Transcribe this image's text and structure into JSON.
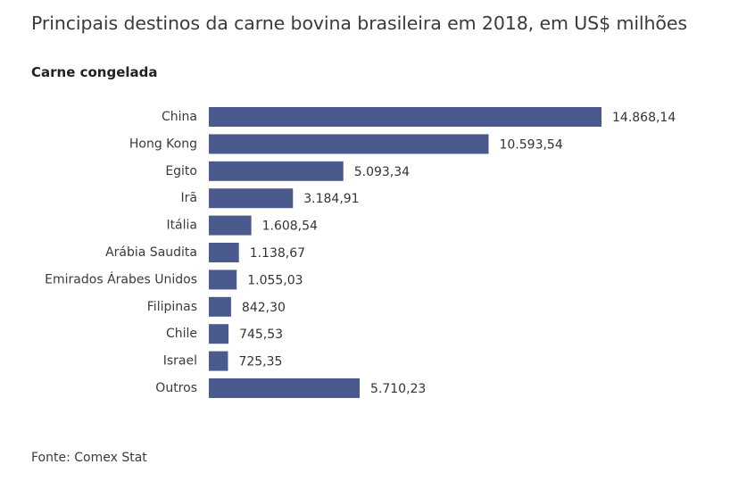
{
  "chart_data": {
    "type": "bar",
    "orientation": "horizontal",
    "title": "Principais destinos da carne bovina brasileira em 2018, em US$ milhões",
    "subtitle": "Carne congelada",
    "categories": [
      "China",
      "Hong Kong",
      "Egito",
      "Irã",
      "Itália",
      "Arábia Saudita",
      "Emirados Árabes Unidos",
      "Filipinas",
      "Chile",
      "Israel",
      "Outros"
    ],
    "values": [
      14868.14,
      10593.54,
      5093.34,
      3184.91,
      1608.54,
      1138.67,
      1055.03,
      842.3,
      745.53,
      725.35,
      5710.23
    ],
    "value_labels": [
      "14.868,14",
      "10.593,54",
      "5.093,34",
      "3.184,91",
      "1.608,54",
      "1.138,67",
      "1.055,03",
      "842,30",
      "745,53",
      "725,35",
      "5.710,23"
    ],
    "xlim": [
      0,
      14868.14
    ],
    "bar_color": "#4a5a8c",
    "grid": false,
    "legend": "none"
  },
  "source": "Fonte: Comex Stat"
}
